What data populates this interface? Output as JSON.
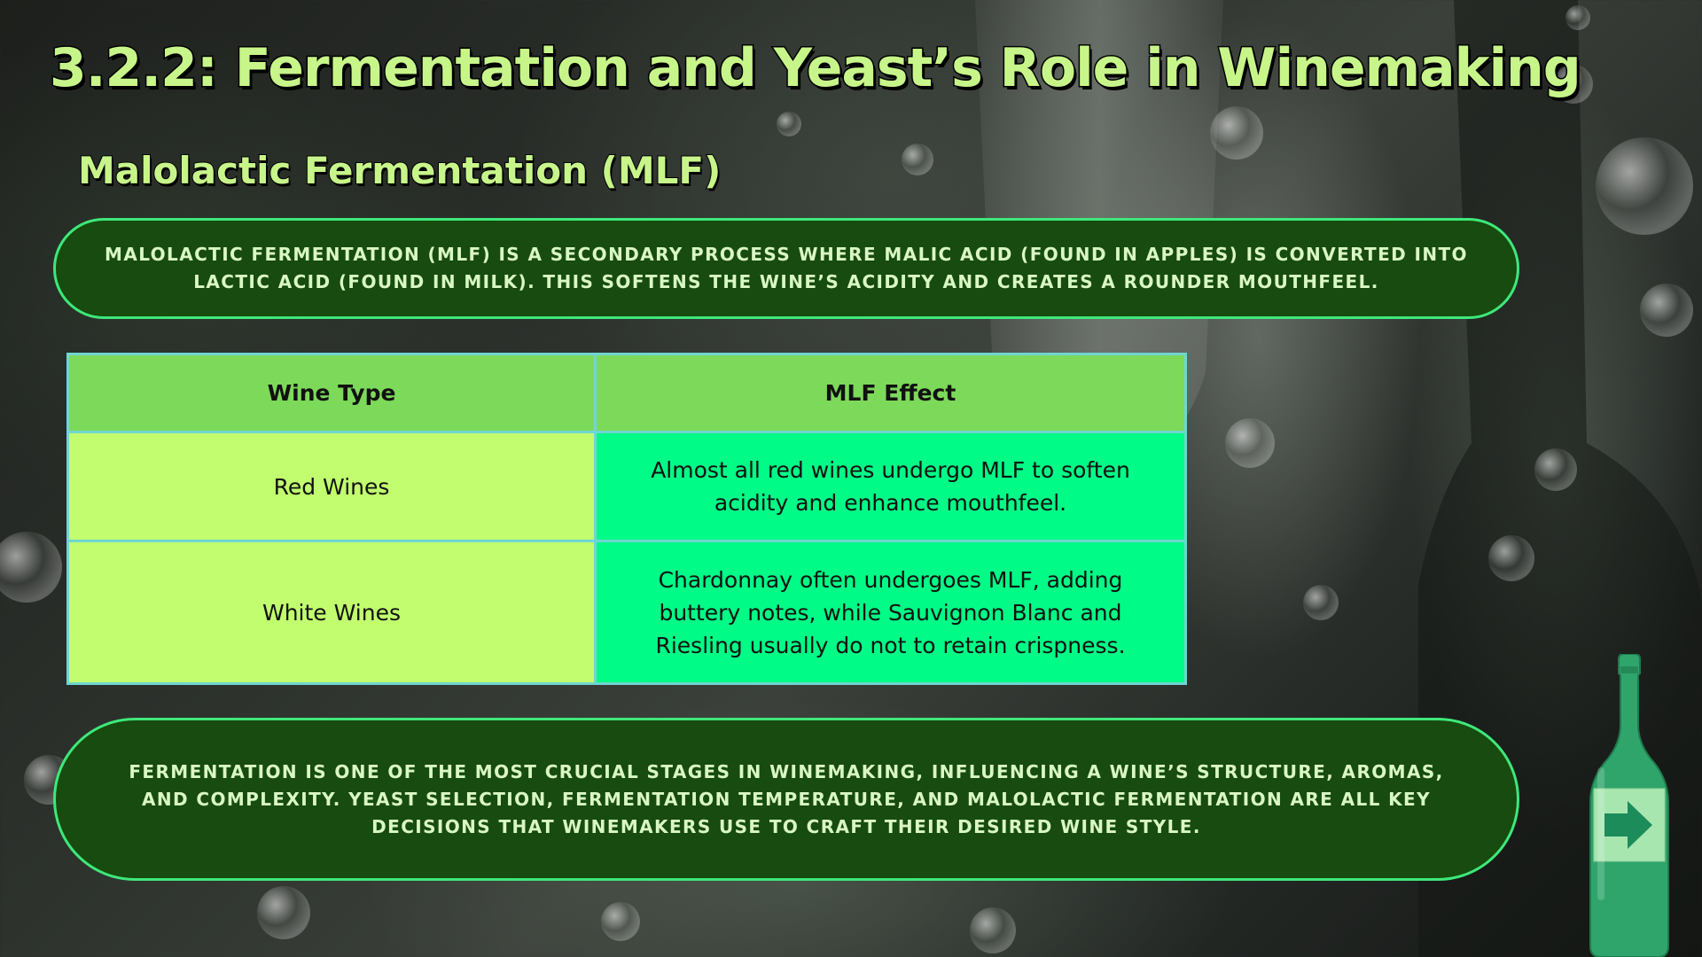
{
  "slide": {
    "title": "3.2.2: Fermentation and Yeast’s Role in Winemaking",
    "subtitle": "Malolactic Fermentation (MLF)",
    "intro_text": "Malolactic fermentation (MLF) is a secondary process where malic acid (found in apples) is converted into lactic acid (found in milk). This softens the wine’s acidity and creates a rounder mouthfeel.",
    "table": {
      "headers": [
        "Wine Type",
        "MLF Effect"
      ],
      "rows": [
        {
          "wine_type": "Red Wines",
          "effect": "Almost all red wines undergo MLF to soften acidity and enhance mouthfeel."
        },
        {
          "wine_type": "White Wines",
          "effect": "Chardonnay often undergoes MLF, adding buttery notes, while Sauvignon Blanc and Riesling usually do not to retain crispness."
        }
      ]
    },
    "summary_text": "Fermentation is one of the most crucial stages in winemaking, influencing a wine’s structure, aromas, and complexity. Yeast selection, fermentation temperature, and malolactic fermentation are all key decisions that winemakers use to craft their desired wine style."
  },
  "navigation": {
    "next_icon": "arrow-right-icon"
  },
  "colors": {
    "title_text": "#c7f58a",
    "pill_background": "#174b0f",
    "pill_border": "#3ee87a",
    "pill_text": "#d9f7c4",
    "table_header": "#7dd95a",
    "table_type_cell": "#c1fd6e",
    "table_effect_cell": "#00fb86",
    "table_border": "#6fd6d0",
    "bottle": "#2fa56c"
  }
}
